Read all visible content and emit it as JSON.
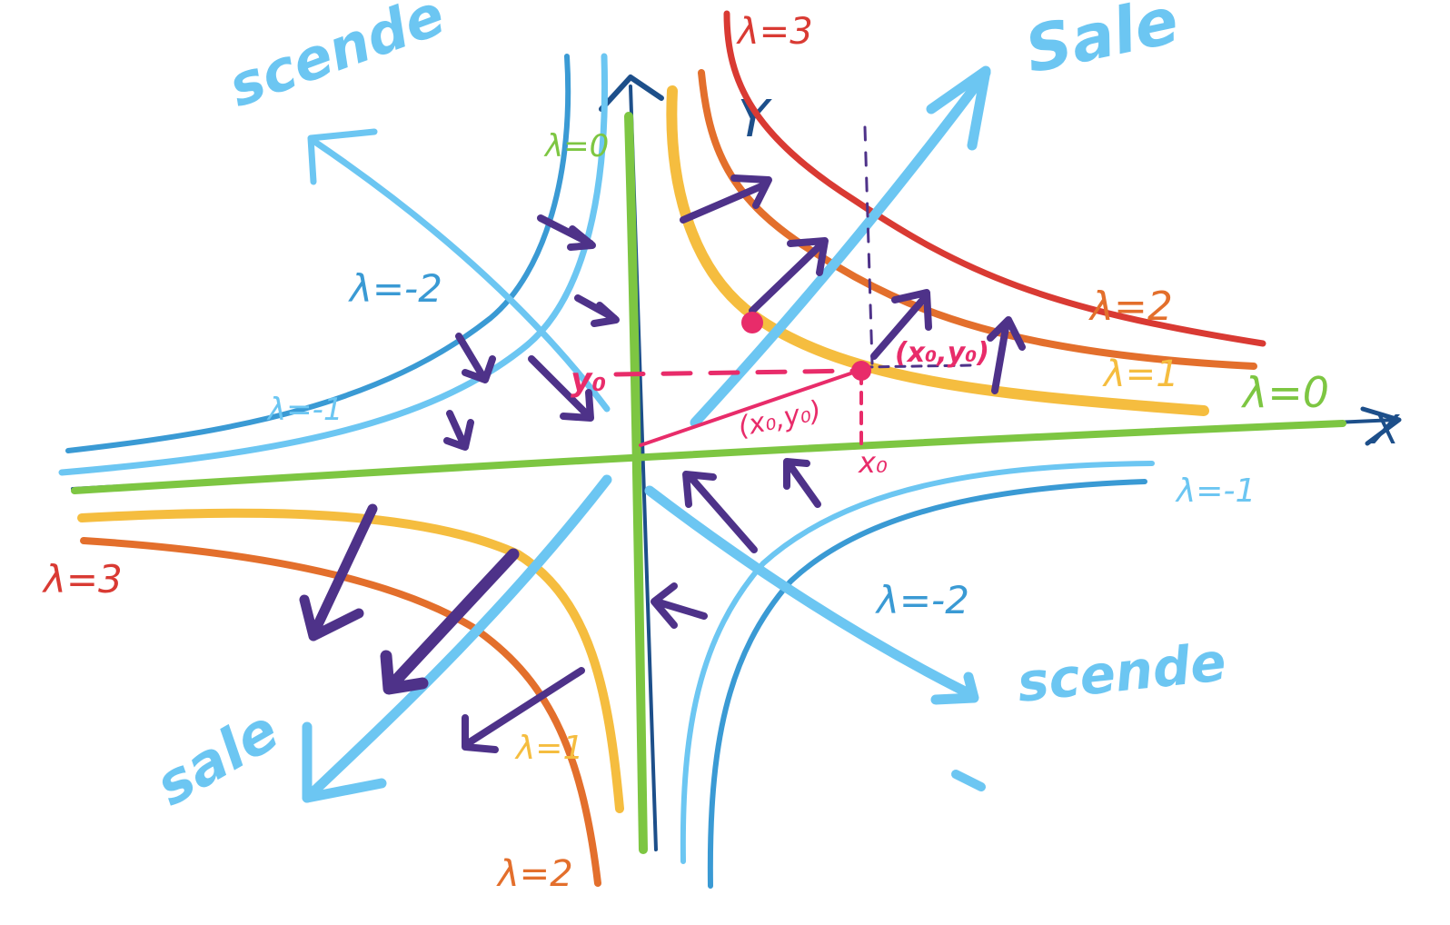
{
  "axes": {
    "x_label": "X",
    "y_label": "Y"
  },
  "labels": {
    "lambda_3_top": "λ=3",
    "lambda_2_right": "λ=2",
    "lambda_1_right": "λ=1",
    "lambda_0_right": "λ=0",
    "lambda_0_top": "λ=0",
    "lambda_neg2_upper": "λ=-2",
    "lambda_neg1_upper": "λ=-1",
    "lambda_neg1_right": "λ=-1",
    "lambda_neg2_lower": "λ=-2",
    "lambda_3_left": "λ=3",
    "lambda_1_bottom": "λ=1",
    "lambda_2_bottom": "λ=2",
    "point_label": "(x₀,y₀)",
    "vector_label": "(x₀,y₀)",
    "y0_label": "y₀",
    "x0_label": "x₀"
  },
  "direction_words": {
    "scende_top_left": "scende",
    "sale_top_right": "Sale",
    "scende_bottom_right": "scende",
    "sale_bottom_left": "sale"
  },
  "colors": {
    "lambda_3": "#d93a33",
    "lambda_2": "#e36f2c",
    "lambda_1": "#f5bd3f",
    "lambda_0": "#7dc642",
    "lambda_neg1": "#6cc6f2",
    "lambda_neg2": "#3a9ad4",
    "axis": "#1d4f8a",
    "gradient_arrows": "#4e3289",
    "point": "#e82c6a",
    "direction_arrows": "#6cc6f2"
  }
}
